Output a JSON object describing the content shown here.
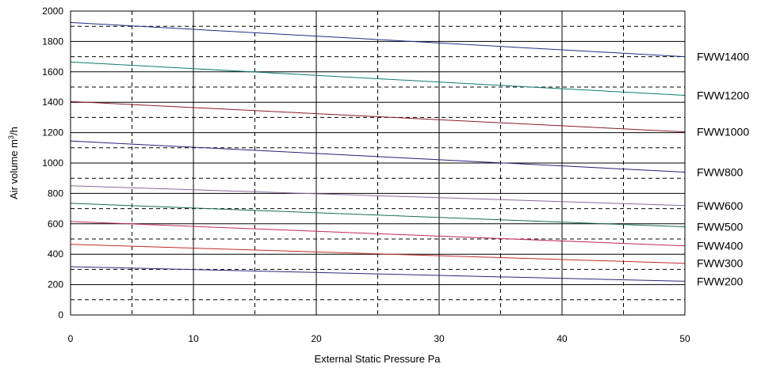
{
  "chart_data": {
    "type": "line",
    "xlabel": "External Static Pressure Pa",
    "ylabel_main": "Air volume m",
    "ylabel_sup": "3",
    "ylabel_tail": "/h",
    "xlim": [
      0,
      50
    ],
    "ylim": [
      0,
      2000
    ],
    "x_ticks": [
      "0",
      "10",
      "20",
      "30",
      "40",
      "50"
    ],
    "y_ticks": [
      "0",
      "200",
      "400",
      "600",
      "800",
      "1000",
      "1200",
      "1400",
      "1600",
      "1800",
      "2000"
    ],
    "grid": {
      "major_solid_y_step": 200,
      "minor_dashed_y_offset": 100,
      "solid_x_step": 10,
      "dashed_x_offset": 5
    },
    "legend": "right",
    "series": [
      {
        "name": "FWW1400",
        "x": [
          0,
          50
        ],
        "y": [
          1925,
          1700
        ],
        "color": "#1f2f8a"
      },
      {
        "name": "FWW1200",
        "x": [
          0,
          50
        ],
        "y": [
          1665,
          1445
        ],
        "color": "#0f7a6e"
      },
      {
        "name": "FWW1000",
        "x": [
          0,
          50
        ],
        "y": [
          1405,
          1205
        ],
        "color": "#8a1a2a"
      },
      {
        "name": "FWW800",
        "x": [
          0,
          50
        ],
        "y": [
          1145,
          940
        ],
        "color": "#2a1f7a"
      },
      {
        "name": "FWW600",
        "x": [
          0,
          50
        ],
        "y": [
          850,
          720
        ],
        "color": "#8a6a9a"
      },
      {
        "name": "FWW500",
        "x": [
          0,
          50
        ],
        "y": [
          735,
          580
        ],
        "color": "#1a6e4a"
      },
      {
        "name": "FWW400",
        "x": [
          0,
          50
        ],
        "y": [
          615,
          455
        ],
        "color": "#c4285a"
      },
      {
        "name": "FWW300",
        "x": [
          0,
          50
        ],
        "y": [
          465,
          340
        ],
        "color": "#c42a2a"
      },
      {
        "name": "FWW200",
        "x": [
          0,
          50
        ],
        "y": [
          318,
          222
        ],
        "color": "#2a2a7a"
      }
    ]
  }
}
